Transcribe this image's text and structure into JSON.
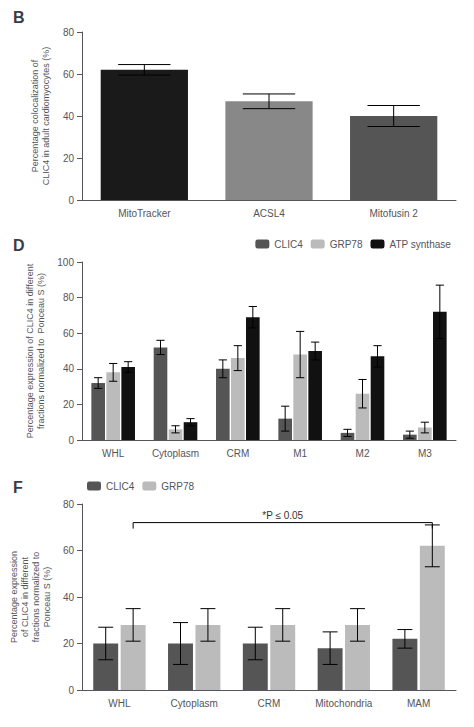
{
  "chart_data": [
    {
      "type": "bar",
      "title": "B",
      "categories": [
        "MitoTracker",
        "ACSL4",
        "Mitofusin 2"
      ],
      "values": [
        62,
        47,
        40
      ],
      "errors": [
        2.5,
        3.5,
        5.0
      ],
      "colors": [
        "#1a1a1a",
        "#888888",
        "#555555"
      ],
      "ylabel": "Percentage colocalization of\nCLIC4 in adult cardiomyocytes (%)",
      "ylim": [
        0,
        80
      ],
      "yticks": [
        0,
        20,
        40,
        60,
        80
      ],
      "grid": false
    },
    {
      "type": "bar",
      "title": "D",
      "categories": [
        "WHL",
        "Cytoplasm",
        "CRM",
        "M1",
        "M2",
        "M3"
      ],
      "series": [
        {
          "name": "CLIC4",
          "color": "#555555",
          "values": [
            32,
            52,
            40,
            12,
            4,
            3
          ],
          "errors": [
            3,
            4,
            5,
            7,
            2,
            2
          ]
        },
        {
          "name": "GRP78",
          "color": "#bbbbbb",
          "values": [
            38,
            6,
            46,
            48,
            26,
            7
          ],
          "errors": [
            5,
            2,
            7,
            13,
            8,
            3
          ]
        },
        {
          "name": "ATP synthase",
          "color": "#111111",
          "values": [
            41,
            10,
            69,
            50,
            47,
            72
          ],
          "errors": [
            3,
            2,
            6,
            5,
            6,
            15
          ]
        }
      ],
      "ylabel": "Percentage expression of CLIC4 in different\nfractions normalized to  Ponceau S (%)",
      "ylim": [
        0,
        100
      ],
      "yticks": [
        0,
        20,
        40,
        60,
        80,
        100
      ],
      "grid": false,
      "legend": "upper right"
    },
    {
      "type": "bar",
      "title": "F",
      "categories": [
        "WHL",
        "Cytoplasm",
        "CRM",
        "Mitochondria",
        "MAM"
      ],
      "series": [
        {
          "name": "CLIC4",
          "color": "#555555",
          "values": [
            20,
            20,
            20,
            18,
            22
          ],
          "errors": [
            7,
            9,
            7,
            7,
            4
          ]
        },
        {
          "name": "GRP78",
          "color": "#bbbbbb",
          "values": [
            28,
            28,
            28,
            28,
            62
          ],
          "errors": [
            7,
            7,
            7,
            7,
            9
          ]
        }
      ],
      "ylabel": "Percentage expression\nof CLIC4 in different\nfractions normalized to\nPonceau S (%)",
      "ylim": [
        0,
        80
      ],
      "yticks": [
        0,
        20,
        40,
        60,
        80
      ],
      "grid": false,
      "legend": "upper left",
      "annotations": [
        {
          "text": "*P ≤ 0.05",
          "x": [
            "WHL",
            "MAM"
          ],
          "y": 72,
          "series": "GRP78"
        }
      ]
    }
  ]
}
